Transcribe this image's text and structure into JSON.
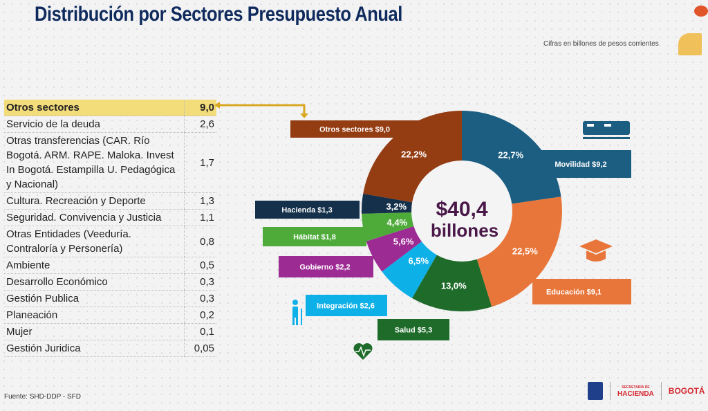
{
  "title": "Distribución por Sectores Presupuesto Anual",
  "note": "Cifras  en billones de pesos corrientes",
  "source": "Fuente: SHD-DDP - SFD",
  "table": [
    {
      "label": "Otros sectores",
      "value": "9,0",
      "highlight": true
    },
    {
      "label": "Servicio de la deuda",
      "value": "2,6"
    },
    {
      "label": "Otras transferencias (CAR. Río Bogotá. ARM. RAPE. Maloka. Invest In Bogotá. Estampilla U. Pedagógica y Nacional)",
      "value": "1,7"
    },
    {
      "label": "Cultura. Recreación y Deporte",
      "value": "1,3"
    },
    {
      "label": "Seguridad. Convivencia y Justicia",
      "value": "1,1"
    },
    {
      "label": "Otras Entidades (Veeduría. Contraloría y Personería)",
      "value": "0,8"
    },
    {
      "label": "Ambiente",
      "value": "0,5"
    },
    {
      "label": "Desarrollo Económico",
      "value": "0,3"
    },
    {
      "label": "Gestión Publica",
      "value": "0,3"
    },
    {
      "label": "Planeación",
      "value": "0,2"
    },
    {
      "label": "Mujer",
      "value": "0,1"
    },
    {
      "label": "Gestión Juridica",
      "value": "0,05"
    }
  ],
  "chart_data": {
    "type": "pie",
    "center_text": [
      "$40,4",
      "billones"
    ],
    "slices": [
      {
        "name": "Movilidad  $9,2",
        "value": 9.2,
        "percent": "22,7%",
        "color": "#1b5e82"
      },
      {
        "name": "Educación  $9,1",
        "value": 9.1,
        "percent": "22,5%",
        "color": "#e8763a"
      },
      {
        "name": "Salud  $5,3",
        "value": 5.3,
        "percent": "13,0%",
        "color": "#1e6b2a"
      },
      {
        "name": "Integración $2,6",
        "value": 2.6,
        "percent": "6,5%",
        "color": "#0eb0e8"
      },
      {
        "name": "Gobierno  $2,2",
        "value": 2.2,
        "percent": "5,6%",
        "color": "#9c2b94"
      },
      {
        "name": "Hábitat  $1,8",
        "value": 1.8,
        "percent": "4,4%",
        "color": "#4eab3a"
      },
      {
        "name": "Hacienda $1,3",
        "value": 1.3,
        "percent": "3,2%",
        "color": "#14304a"
      },
      {
        "name": "Otros sectores $9,0",
        "value": 9.0,
        "percent": "22,2%",
        "color": "#943c12"
      }
    ]
  },
  "colors": {
    "title": "#0f2a5c",
    "highlight": "#f3dc7a",
    "center_text": "#4a1848"
  },
  "logos": {
    "alcaldia": "ALCALDÍA MAYOR DE BOGOTÁ D.C.",
    "hacienda_top": "SECRETARÍA DE",
    "hacienda": "HACIENDA",
    "bogota": "BOGOTÁ"
  }
}
